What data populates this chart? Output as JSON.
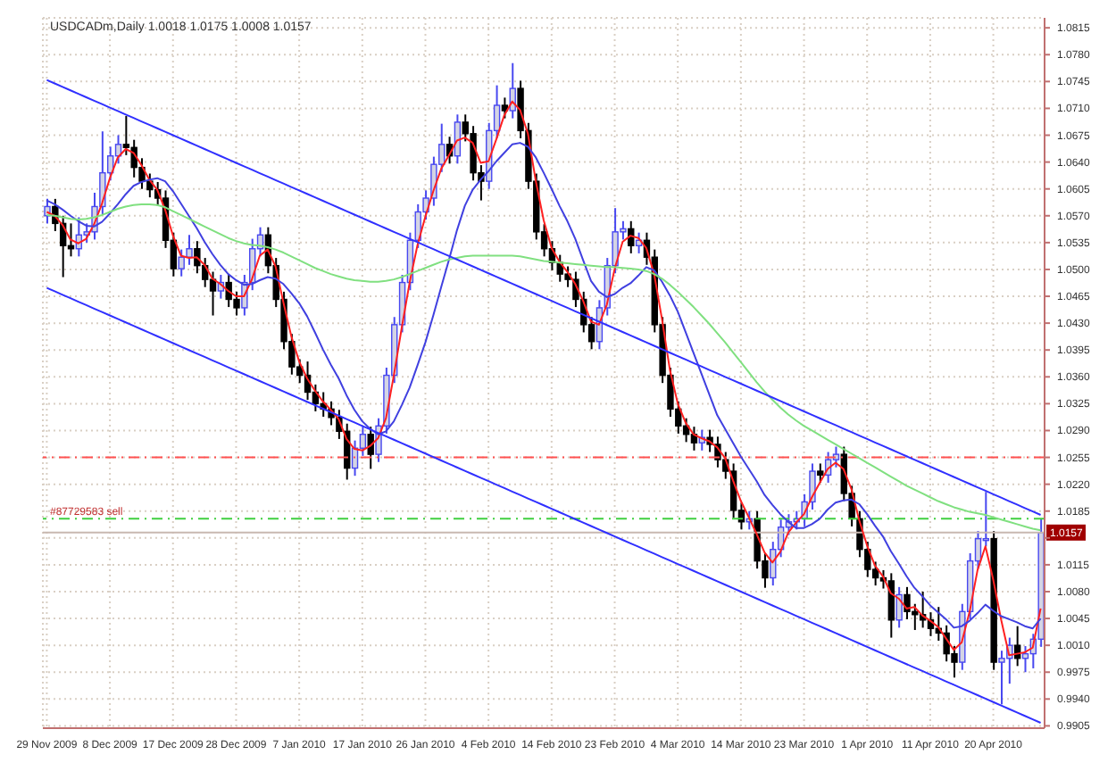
{
  "chart_data": {
    "type": "candlestick",
    "title": "USDCADm,Daily 1.0018 1.0175 1.0008 1.0157",
    "colors": [
      "#4848f0",
      "#000000",
      "#000000",
      "#000000",
      "#4848f0",
      "#4848f0",
      "#4848f0",
      "#4848f0",
      "#4848f0",
      "#4848f0",
      "#000000",
      "#000000",
      "#000000",
      "#000000",
      "#000000",
      "#000000",
      "#000000",
      "#4848f0",
      "#4848f0",
      "#000000",
      "#000000",
      "#000000",
      "#4848f0",
      "#000000",
      "#000000",
      "#4848f0",
      "#4848f0",
      "#4848f0",
      "#000000",
      "#000000",
      "#000000",
      "#000000",
      "#000000",
      "#000000",
      "#000000",
      "#000000",
      "#000000",
      "#000000",
      "#000000",
      "#4848f0",
      "#4848f0",
      "#000000",
      "#4848f0",
      "#4848f0",
      "#4848f0",
      "#4848f0",
      "#4848f0",
      "#4848f0",
      "#4848f0",
      "#4848f0",
      "#4848f0",
      "#000000",
      "#4848f0",
      "#000000",
      "#000000",
      "#000000",
      "#4848f0",
      "#4848f0",
      "#000000",
      "#4848f0",
      "#000000",
      "#000000",
      "#000000",
      "#000000",
      "#000000",
      "#000000",
      "#000000",
      "#000000",
      "#000000",
      "#000000",
      "#4848f0",
      "#4848f0",
      "#4848f0",
      "#4848f0",
      "#000000",
      "#4848f0",
      "#000000",
      "#000000",
      "#000000",
      "#000000",
      "#000000",
      "#000000",
      "#000000",
      "#4848f0",
      "#000000",
      "#000000",
      "#000000",
      "#000000",
      "#000000",
      "#4848f0",
      "#000000",
      "#000000",
      "#4848f0",
      "#4848f0",
      "#4848f0",
      "#4848f0",
      "#4848f0",
      "#4848f0",
      "#000000",
      "#4848f0",
      "#4848f0",
      "#000000",
      "#000000",
      "#000000",
      "#000000",
      "#000000",
      "#000000",
      "#000000",
      "#4848f0",
      "#000000",
      "#000000",
      "#000000",
      "#000000",
      "#000000",
      "#000000",
      "#000000",
      "#4848f0",
      "#4848f0",
      "#4848f0",
      "#4848f0",
      "#000000",
      "#4848f0",
      "#4848f0",
      "#000000",
      "#4848f0",
      "#4848f0",
      "#4848f0"
    ],
    "categories": [
      "29 Nov 2009",
      null,
      null,
      null,
      null,
      null,
      null,
      null,
      "8 Dec 2009",
      null,
      null,
      null,
      null,
      null,
      null,
      null,
      "17 Dec 2009",
      null,
      null,
      null,
      null,
      null,
      null,
      null,
      "28 Dec 2009",
      null,
      null,
      null,
      null,
      null,
      null,
      null,
      "7 Jan 2010",
      null,
      null,
      null,
      null,
      null,
      null,
      null,
      "17 Jan 2010",
      null,
      null,
      null,
      null,
      null,
      null,
      null,
      "26 Jan 2010",
      null,
      null,
      null,
      null,
      null,
      null,
      null,
      "4 Feb 2010",
      null,
      null,
      null,
      null,
      null,
      null,
      null,
      "14 Feb 2010",
      null,
      null,
      null,
      null,
      null,
      null,
      null,
      "23 Feb 2010",
      null,
      null,
      null,
      null,
      null,
      null,
      null,
      "4 Mar 2010",
      null,
      null,
      null,
      null,
      null,
      null,
      null,
      "14 Mar 2010",
      null,
      null,
      null,
      null,
      null,
      null,
      null,
      "23 Mar 2010",
      null,
      null,
      null,
      null,
      null,
      null,
      null,
      "1 Apr 2010",
      null,
      null,
      null,
      null,
      null,
      null,
      null,
      "11 Apr 2010",
      null,
      null,
      null,
      null,
      null,
      null,
      null,
      "20 Apr 2010",
      null,
      null,
      null,
      null,
      null,
      null
    ],
    "ohlc": [
      [
        1.057,
        1.0592,
        1.056,
        1.0582
      ],
      [
        1.0582,
        1.0592,
        1.055,
        1.056
      ],
      [
        1.056,
        1.057,
        1.049,
        1.0531
      ],
      [
        1.0531,
        1.056,
        1.0517,
        1.0527
      ],
      [
        1.0527,
        1.0568,
        1.0517,
        1.0545
      ],
      [
        1.0545,
        1.056,
        1.0535,
        1.0549
      ],
      [
        1.0549,
        1.06,
        1.0539,
        1.0582
      ],
      [
        1.0582,
        1.068,
        1.0572,
        1.0626
      ],
      [
        1.0626,
        1.066,
        1.0616,
        1.0648
      ],
      [
        1.0648,
        1.0675,
        1.0638,
        1.0663
      ],
      [
        1.0663,
        1.07,
        1.0649,
        1.0659
      ],
      [
        1.0659,
        1.0669,
        1.062,
        1.0633
      ],
      [
        1.0633,
        1.0645,
        1.0605,
        1.0615
      ],
      [
        1.0615,
        1.0625,
        1.0594,
        1.0604
      ],
      [
        1.0604,
        1.0614,
        1.0583,
        1.0593
      ],
      [
        1.0593,
        1.0603,
        1.0528,
        1.0538
      ],
      [
        1.0538,
        1.0548,
        1.0491,
        1.0501
      ],
      [
        1.0501,
        1.0526,
        1.0491,
        1.0516
      ],
      [
        1.0516,
        1.0545,
        1.0506,
        1.0527
      ],
      [
        1.0527,
        1.0537,
        1.0495,
        1.0505
      ],
      [
        1.0505,
        1.0515,
        1.0477,
        1.0487
      ],
      [
        1.0487,
        1.0497,
        1.044,
        1.0472
      ],
      [
        1.0472,
        1.0493,
        1.0462,
        1.0483
      ],
      [
        1.0483,
        1.0493,
        1.0451,
        1.0461
      ],
      [
        1.0461,
        1.0471,
        1.044,
        1.045
      ],
      [
        1.045,
        1.0493,
        1.044,
        1.0483
      ],
      [
        1.0483,
        1.054,
        1.0473,
        1.0527
      ],
      [
        1.0527,
        1.0555,
        1.0517,
        1.0545
      ],
      [
        1.0545,
        1.0555,
        1.0495,
        1.0505
      ],
      [
        1.0505,
        1.0515,
        1.0451,
        1.0461
      ],
      [
        1.0461,
        1.0471,
        1.0396,
        1.0406
      ],
      [
        1.0406,
        1.0416,
        1.0363,
        1.0373
      ],
      [
        1.0373,
        1.0383,
        1.0352,
        1.0362
      ],
      [
        1.0362,
        1.038,
        1.033,
        1.034
      ],
      [
        1.034,
        1.035,
        1.0315,
        1.0325
      ],
      [
        1.0325,
        1.034,
        1.0308,
        1.0318
      ],
      [
        1.0318,
        1.0328,
        1.0297,
        1.0307
      ],
      [
        1.0307,
        1.0317,
        1.0279,
        1.0289
      ],
      [
        1.0289,
        1.0299,
        1.0226,
        1.0241
      ],
      [
        1.0241,
        1.0277,
        1.0231,
        1.0267
      ],
      [
        1.0267,
        1.0295,
        1.0257,
        1.0285
      ],
      [
        1.0285,
        1.0295,
        1.024,
        1.0259
      ],
      [
        1.0259,
        1.0306,
        1.0249,
        1.0296
      ],
      [
        1.0296,
        1.0372,
        1.0286,
        1.0362
      ],
      [
        1.0362,
        1.0438,
        1.0352,
        1.0428
      ],
      [
        1.0428,
        1.0493,
        1.0418,
        1.0483
      ],
      [
        1.0483,
        1.0548,
        1.0473,
        1.0538
      ],
      [
        1.0538,
        1.0585,
        1.0528,
        1.0575
      ],
      [
        1.0575,
        1.0603,
        1.0565,
        1.0593
      ],
      [
        1.0593,
        1.0647,
        1.0583,
        1.0637
      ],
      [
        1.0637,
        1.069,
        1.0627,
        1.0663
      ],
      [
        1.0663,
        1.0673,
        1.0638,
        1.0648
      ],
      [
        1.0648,
        1.0702,
        1.0638,
        1.0692
      ],
      [
        1.0692,
        1.0702,
        1.0667,
        1.0677
      ],
      [
        1.0677,
        1.0687,
        1.0616,
        1.0626
      ],
      [
        1.0626,
        1.0636,
        1.059,
        1.0615
      ],
      [
        1.0615,
        1.0691,
        1.0605,
        1.0681
      ],
      [
        1.0681,
        1.074,
        1.0671,
        1.0714
      ],
      [
        1.0714,
        1.0724,
        1.0697,
        1.0707
      ],
      [
        1.0707,
        1.0769,
        1.0697,
        1.0736
      ],
      [
        1.0736,
        1.0746,
        1.0671,
        1.0681
      ],
      [
        1.0681,
        1.0691,
        1.0605,
        1.0615
      ],
      [
        1.0615,
        1.0625,
        1.0539,
        1.0549
      ],
      [
        1.0549,
        1.0559,
        1.0517,
        1.0527
      ],
      [
        1.0527,
        1.0537,
        1.0499,
        1.0509
      ],
      [
        1.0509,
        1.0519,
        1.0484,
        1.0494
      ],
      [
        1.0494,
        1.0504,
        1.0477,
        1.0487
      ],
      [
        1.0487,
        1.0497,
        1.0451,
        1.0461
      ],
      [
        1.0461,
        1.0471,
        1.0418,
        1.0428
      ],
      [
        1.0428,
        1.0438,
        1.0396,
        1.0406
      ],
      [
        1.0406,
        1.046,
        1.0396,
        1.045
      ],
      [
        1.045,
        1.0515,
        1.044,
        1.0505
      ],
      [
        1.0505,
        1.058,
        1.0495,
        1.0549
      ],
      [
        1.0549,
        1.0563,
        1.0539,
        1.0553
      ],
      [
        1.0553,
        1.0563,
        1.0521,
        1.0531
      ],
      [
        1.0531,
        1.0548,
        1.0521,
        1.0538
      ],
      [
        1.0538,
        1.0548,
        1.0506,
        1.0516
      ],
      [
        1.0516,
        1.0526,
        1.0418,
        1.0428
      ],
      [
        1.0428,
        1.0438,
        1.0352,
        1.0362
      ],
      [
        1.0362,
        1.0372,
        1.0308,
        1.0318
      ],
      [
        1.0318,
        1.0328,
        1.0286,
        1.0296
      ],
      [
        1.0296,
        1.0306,
        1.0275,
        1.0285
      ],
      [
        1.0285,
        1.0295,
        1.0264,
        1.0274
      ],
      [
        1.0274,
        1.0291,
        1.0264,
        1.0281
      ],
      [
        1.0281,
        1.0291,
        1.0262,
        1.0272
      ],
      [
        1.0272,
        1.0282,
        1.0242,
        1.0252
      ],
      [
        1.0252,
        1.0262,
        1.0227,
        1.0237
      ],
      [
        1.0237,
        1.0247,
        1.0176,
        1.0186
      ],
      [
        1.0186,
        1.0196,
        1.0161,
        1.0171
      ],
      [
        1.0171,
        1.0185,
        1.0161,
        1.0175
      ],
      [
        1.0175,
        1.0185,
        1.011,
        1.012
      ],
      [
        1.012,
        1.013,
        1.0085,
        1.0098
      ],
      [
        1.0098,
        1.0145,
        1.0088,
        1.0135
      ],
      [
        1.0135,
        1.0174,
        1.0125,
        1.0164
      ],
      [
        1.0164,
        1.0181,
        1.0154,
        1.0171
      ],
      [
        1.0171,
        1.0185,
        1.0161,
        1.0175
      ],
      [
        1.0175,
        1.0207,
        1.0165,
        1.0197
      ],
      [
        1.0197,
        1.0247,
        1.0187,
        1.0237
      ],
      [
        1.0237,
        1.0247,
        1.0222,
        1.0232
      ],
      [
        1.0232,
        1.0262,
        1.0222,
        1.0252
      ],
      [
        1.0252,
        1.0269,
        1.0242,
        1.0259
      ],
      [
        1.0259,
        1.0269,
        1.0198,
        1.0208
      ],
      [
        1.0208,
        1.0218,
        1.0165,
        1.0175
      ],
      [
        1.0175,
        1.0185,
        1.0125,
        1.0135
      ],
      [
        1.0135,
        1.0145,
        1.0099,
        1.0109
      ],
      [
        1.0109,
        1.0119,
        1.0088,
        1.0098
      ],
      [
        1.0098,
        1.0108,
        1.0084,
        1.0094
      ],
      [
        1.0094,
        1.0104,
        1.002,
        1.0043
      ],
      [
        1.0043,
        1.0086,
        1.0033,
        1.0076
      ],
      [
        1.0076,
        1.0086,
        1.0044,
        1.0054
      ],
      [
        1.0054,
        1.0064,
        1.003,
        1.005
      ],
      [
        1.005,
        1.008,
        1.0033,
        1.0043
      ],
      [
        1.0043,
        1.0053,
        1.0022,
        1.0032
      ],
      [
        1.0032,
        1.006,
        1.0016,
        1.0026
      ],
      [
        1.0026,
        1.0036,
        0.9989,
        0.9999
      ],
      [
        0.9999,
        1.0009,
        0.9968,
        0.9988
      ],
      [
        0.9988,
        1.0064,
        0.9978,
        1.0054
      ],
      [
        1.0054,
        1.013,
        1.0044,
        1.012
      ],
      [
        1.012,
        1.0159,
        1.011,
        1.0149
      ],
      [
        1.0149,
        1.021,
        1.0139,
        1.0149
      ],
      [
        1.0149,
        1.0159,
        0.9978,
        0.9988
      ],
      [
        0.9988,
        1.0003,
        0.9933,
        0.9993
      ],
      [
        0.9993,
        1.002,
        0.996,
        1.001
      ],
      [
        1.001,
        1.0035,
        0.9983,
        0.9993
      ],
      [
        0.9993,
        1.0009,
        0.9975,
        0.9999
      ],
      [
        0.9999,
        1.0025,
        0.998,
        1.0018
      ],
      [
        1.0018,
        1.0175,
        1.0008,
        1.0157
      ]
    ],
    "series": [
      {
        "type": "line",
        "color": "#ff2020",
        "values": [
          1.0575,
          1.057,
          1.0558,
          1.0539,
          1.0534,
          1.054,
          1.0559,
          1.0586,
          1.0619,
          1.0646,
          1.0657,
          1.0652,
          1.0636,
          1.0617,
          1.0604,
          1.0578,
          1.0544,
          1.0518,
          1.0515,
          1.0516,
          1.0506,
          1.0488,
          1.0481,
          1.0472,
          1.0465,
          1.0465,
          1.0487,
          1.0518,
          1.0526,
          1.0504,
          1.0457,
          1.0413,
          1.038,
          1.0358,
          1.0342,
          1.0328,
          1.0317,
          1.0305,
          1.0279,
          1.0266,
          1.0264,
          1.027,
          1.028,
          1.0306,
          1.0362,
          1.0424,
          1.0483,
          1.0532,
          1.0569,
          1.0602,
          1.0631,
          1.0649,
          1.0668,
          1.0672,
          1.0665,
          1.0639,
          1.0641,
          1.067,
          1.0701,
          1.0719,
          1.0708,
          1.0677,
          1.0615,
          1.0564,
          1.0528,
          1.051,
          1.0497,
          1.0481,
          1.0459,
          1.0432,
          1.0428,
          1.0454,
          1.0501,
          1.0536,
          1.0544,
          1.0541,
          1.0528,
          1.0494,
          1.0435,
          1.0369,
          1.0325,
          1.03,
          1.0285,
          1.028,
          1.0276,
          1.0268,
          1.0254,
          1.0225,
          1.0198,
          1.0177,
          1.0155,
          1.0131,
          1.0118,
          1.0132,
          1.0157,
          1.017,
          1.0181,
          1.0203,
          1.0222,
          1.024,
          1.0248,
          1.024,
          1.0214,
          1.0173,
          1.014,
          1.0114,
          1.01,
          1.0078,
          1.0071,
          1.0058,
          1.006,
          1.0049,
          1.0042,
          1.0034,
          1.0019,
          1.0004,
          1.0014,
          1.0054,
          1.0108,
          1.0139,
          1.0095,
          1.0043,
          0.9997,
          0.9999,
          1.0001,
          1.0007,
          1.0058
        ]
      },
      {
        "type": "line",
        "color": "#4040e0",
        "values": [
          1.059,
          1.0585,
          1.0578,
          1.057,
          1.0563,
          1.0557,
          1.0556,
          1.0562,
          1.0573,
          1.0585,
          1.0598,
          1.0609,
          1.0614,
          1.0617,
          1.0619,
          1.0615,
          1.0602,
          1.0586,
          1.057,
          1.0554,
          1.0536,
          1.052,
          1.0506,
          1.0494,
          1.0486,
          1.048,
          1.0481,
          1.0486,
          1.049,
          1.0488,
          1.0481,
          1.0469,
          1.0456,
          1.0439,
          1.0418,
          1.0396,
          1.0376,
          1.0358,
          1.0336,
          1.0317,
          1.0302,
          1.0292,
          1.0285,
          1.0289,
          1.0302,
          1.0323,
          1.0346,
          1.0375,
          1.0405,
          1.044,
          1.0477,
          1.0513,
          1.0551,
          1.0583,
          1.0604,
          1.0617,
          1.0628,
          1.0641,
          1.0652,
          1.0663,
          1.0665,
          1.066,
          1.0646,
          1.0626,
          1.0605,
          1.0583,
          1.0563,
          1.054,
          1.0512,
          1.0485,
          1.0471,
          1.0464,
          1.0468,
          1.0476,
          1.0482,
          1.0492,
          1.0503,
          1.0499,
          1.0484,
          1.0466,
          1.0445,
          1.0418,
          1.0391,
          1.0364,
          1.0337,
          1.031,
          1.0292,
          1.0274,
          1.0256,
          1.024,
          1.0224,
          1.0206,
          1.0193,
          1.0181,
          1.0171,
          1.0163,
          1.0163,
          1.0168,
          1.0175,
          1.0187,
          1.0196,
          1.0199,
          1.02,
          1.0194,
          1.0181,
          1.0166,
          1.0152,
          1.0133,
          1.0117,
          1.01,
          1.0085,
          1.0074,
          1.0062,
          1.0053,
          1.0044,
          1.0033,
          1.0035,
          1.0042,
          1.0052,
          1.0063,
          1.0055,
          1.0048,
          1.0044,
          1.004,
          1.0035,
          1.0032,
          1.0045
        ]
      },
      {
        "type": "line",
        "color": "#80e080",
        "values": [
          1.0571,
          1.057,
          1.0568,
          1.0566,
          1.0565,
          1.0566,
          1.0568,
          1.0571,
          1.0575,
          1.0579,
          1.0582,
          1.0584,
          1.0585,
          1.0585,
          1.0584,
          1.0581,
          1.0576,
          1.0571,
          1.0566,
          1.0561,
          1.0556,
          1.0551,
          1.0546,
          1.0541,
          1.0537,
          1.0534,
          1.0532,
          1.0531,
          1.0529,
          1.0526,
          1.0522,
          1.0517,
          1.0512,
          1.0507,
          1.0502,
          1.0498,
          1.0494,
          1.0491,
          1.0488,
          1.0486,
          1.0485,
          1.0484,
          1.0484,
          1.0485,
          1.0487,
          1.049,
          1.0494,
          1.0498,
          1.0502,
          1.0506,
          1.051,
          1.0513,
          1.0515,
          1.0517,
          1.0518,
          1.0518,
          1.0518,
          1.0518,
          1.0518,
          1.0518,
          1.0517,
          1.0515,
          1.0513,
          1.0511,
          1.051,
          1.0509,
          1.0508,
          1.0507,
          1.0506,
          1.0505,
          1.0504,
          1.0503,
          1.0503,
          1.0502,
          1.0501,
          1.05,
          1.0498,
          1.0494,
          1.0488,
          1.048,
          1.0471,
          1.0461,
          1.0451,
          1.044,
          1.0429,
          1.0417,
          1.0405,
          1.0392,
          1.0379,
          1.0366,
          1.0353,
          1.0341,
          1.033,
          1.032,
          1.0311,
          1.0303,
          1.0296,
          1.029,
          1.0284,
          1.0278,
          1.0272,
          1.0266,
          1.026,
          1.0254,
          1.0248,
          1.0242,
          1.0236,
          1.023,
          1.0224,
          1.0218,
          1.0213,
          1.0208,
          1.0203,
          1.0198,
          1.0194,
          1.019,
          1.0187,
          1.0184,
          1.0182,
          1.018,
          1.0177,
          1.0174,
          1.0171,
          1.0168,
          1.0165,
          1.0162,
          1.016
        ]
      },
      {
        "type": "line",
        "color": "#3030ff",
        "values": [
          1.0747,
          1.07425,
          1.0738,
          1.07335,
          1.0729,
          1.07245,
          1.072,
          1.07155,
          1.0711,
          1.07065,
          1.0702,
          1.06975,
          1.0693,
          1.06885,
          1.0684,
          1.06795,
          1.0675,
          1.06705,
          1.0666,
          1.06615,
          1.0657,
          1.06525,
          1.0648,
          1.06435,
          1.0639,
          1.06345,
          1.063,
          1.06255,
          1.0621,
          1.06165,
          1.0612,
          1.06075,
          1.0603,
          1.05985,
          1.0594,
          1.05895,
          1.0585,
          1.05805,
          1.0576,
          1.05715,
          1.0567,
          1.05625,
          1.0558,
          1.05535,
          1.0549,
          1.05445,
          1.054,
          1.05355,
          1.0531,
          1.05265,
          1.0522,
          1.05175,
          1.0513,
          1.05085,
          1.0504,
          1.04995,
          1.0495,
          1.04905,
          1.0486,
          1.04815,
          1.0477,
          1.04725,
          1.0468,
          1.04635,
          1.0459,
          1.04545,
          1.045,
          1.04455,
          1.0441,
          1.04365,
          1.0432,
          1.04275,
          1.0423,
          1.04185,
          1.0414,
          1.04095,
          1.0405,
          1.04005,
          1.0396,
          1.03915,
          1.0387,
          1.03825,
          1.0378,
          1.03735,
          1.0369,
          1.03645,
          1.036,
          1.03555,
          1.0351,
          1.03465,
          1.0342,
          1.03375,
          1.0333,
          1.03285,
          1.0324,
          1.03195,
          1.0315,
          1.03105,
          1.0306,
          1.03015,
          1.0297,
          1.02925,
          1.0288,
          1.02835,
          1.0279,
          1.02745,
          1.027,
          1.02655,
          1.0261,
          1.02565,
          1.0252,
          1.02475,
          1.0243,
          1.02385,
          1.0234,
          1.02295,
          1.0225,
          1.02205,
          1.0216,
          1.02115,
          1.0207,
          1.02025,
          1.0198,
          1.01935,
          1.0189,
          1.01845,
          1.018
        ]
      },
      {
        "type": "line",
        "color": "#3030ff",
        "values": [
          1.0476,
          1.04715,
          1.0467,
          1.04625,
          1.0458,
          1.04535,
          1.0449,
          1.04445,
          1.044,
          1.04355,
          1.0431,
          1.04265,
          1.0422,
          1.04175,
          1.0413,
          1.04085,
          1.0404,
          1.03995,
          1.0395,
          1.03905,
          1.0386,
          1.03815,
          1.0377,
          1.03725,
          1.0368,
          1.03635,
          1.0359,
          1.03545,
          1.035,
          1.03455,
          1.0341,
          1.03365,
          1.0332,
          1.03275,
          1.0323,
          1.03185,
          1.0314,
          1.03095,
          1.0305,
          1.03005,
          1.0296,
          1.02915,
          1.0287,
          1.02825,
          1.0278,
          1.02735,
          1.0269,
          1.02645,
          1.026,
          1.02555,
          1.0251,
          1.02465,
          1.0242,
          1.02375,
          1.0233,
          1.02285,
          1.0224,
          1.02195,
          1.0215,
          1.02105,
          1.0206,
          1.02015,
          1.0197,
          1.01925,
          1.0188,
          1.01835,
          1.0179,
          1.01745,
          1.017,
          1.01655,
          1.0161,
          1.01565,
          1.0152,
          1.01475,
          1.0143,
          1.01385,
          1.0134,
          1.01295,
          1.0125,
          1.01205,
          1.0116,
          1.01115,
          1.0107,
          1.01025,
          1.0098,
          1.00935,
          1.0089,
          1.00845,
          1.008,
          1.00755,
          1.0071,
          1.00665,
          1.0062,
          1.00575,
          1.0053,
          1.00485,
          1.0044,
          1.00395,
          1.0035,
          1.00305,
          1.0026,
          1.00215,
          1.0017,
          1.00125,
          1.0008,
          1.00035,
          0.9999,
          0.99945,
          0.999,
          0.99855,
          0.9981,
          0.99765,
          0.9972,
          0.99675,
          0.9963,
          0.99585,
          0.9954,
          0.99495,
          0.9945,
          0.99405,
          0.9936,
          0.99315,
          0.9927,
          0.99225,
          0.9918,
          0.99135,
          0.9909
        ]
      }
    ],
    "ylim": [
      0.9902,
      1.0828
    ],
    "yticks": [
      1.0815,
      {
        "value": 1.078,
        "label": "1.0780"
      },
      1.0745,
      {
        "value": 1.071,
        "label": "1.0710"
      },
      1.0675,
      {
        "value": 1.064,
        "label": "1.0640"
      },
      1.0605,
      {
        "value": 1.057,
        "label": "1.0570"
      },
      1.0535,
      {
        "value": 1.05,
        "label": "1.0500"
      },
      1.0465,
      {
        "value": 1.043,
        "label": "1.0430"
      },
      1.0395,
      {
        "value": 1.036,
        "label": "1.0360"
      },
      1.0325,
      {
        "value": 1.029,
        "label": "1.0290"
      },
      1.0255,
      {
        "value": 1.022,
        "label": "1.0220"
      },
      1.0185,
      {
        "value": 1.015,
        "label": null
      },
      1.0115,
      {
        "value": 1.008,
        "label": "1.0080"
      },
      1.0045,
      {
        "value": 1.001,
        "label": "1.0010"
      },
      0.9975,
      {
        "value": 0.994,
        "label": "0.9940"
      },
      0.9905
    ],
    "grid": true,
    "ref_lines": [
      {
        "axis": "y",
        "value": 1.0255,
        "color": "#ff5050",
        "line_style": "dashed"
      },
      {
        "axis": "y",
        "value": 1.0175,
        "label": "#87729583 sell",
        "color": "#40d040",
        "line_style": "dashed"
      },
      {
        "axis": "y",
        "value": 1.0157,
        "label": "1.0157",
        "color": "#c8b8b0",
        "line_style": "solid"
      }
    ]
  }
}
